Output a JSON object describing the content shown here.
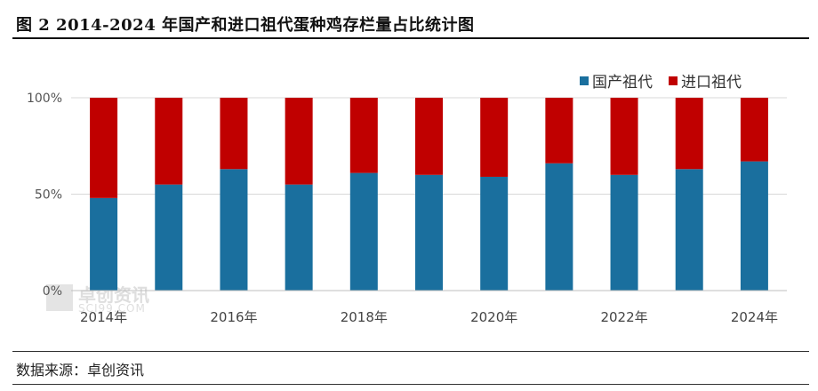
{
  "header": {
    "title": "图 2 2014-2024 年国产和进口祖代蛋种鸡存栏量占比统计图"
  },
  "footer": {
    "source": "数据来源：卓创资讯"
  },
  "watermark": {
    "name": "卓创资讯",
    "url": "SCI99.COM"
  },
  "colors": {
    "domestic": "#1a6f9e",
    "imported": "#c00000",
    "grid": "#d9d9d9",
    "axis": "#bfbfbf"
  },
  "chart_data": {
    "type": "bar",
    "stacked": true,
    "categories": [
      "2014年",
      "2015年",
      "2016年",
      "2017年",
      "2018年",
      "2019年",
      "2020年",
      "2021年",
      "2022年",
      "2023年",
      "2024年"
    ],
    "xtick_labels": [
      "2014年",
      "",
      "2016年",
      "",
      "2018年",
      "",
      "2020年",
      "",
      "2022年",
      "",
      "2024年"
    ],
    "series": [
      {
        "name": "国产祖代",
        "values": [
          48,
          55,
          63,
          55,
          61,
          60,
          59,
          66,
          60,
          63,
          67
        ]
      },
      {
        "name": "进口祖代",
        "values": [
          52,
          45,
          37,
          45,
          39,
          40,
          41,
          34,
          40,
          37,
          33
        ]
      }
    ],
    "ylim": [
      0,
      100
    ],
    "yticks": [
      "0%",
      "50%",
      "100%"
    ],
    "grid": true,
    "legend_position": "top-right"
  }
}
